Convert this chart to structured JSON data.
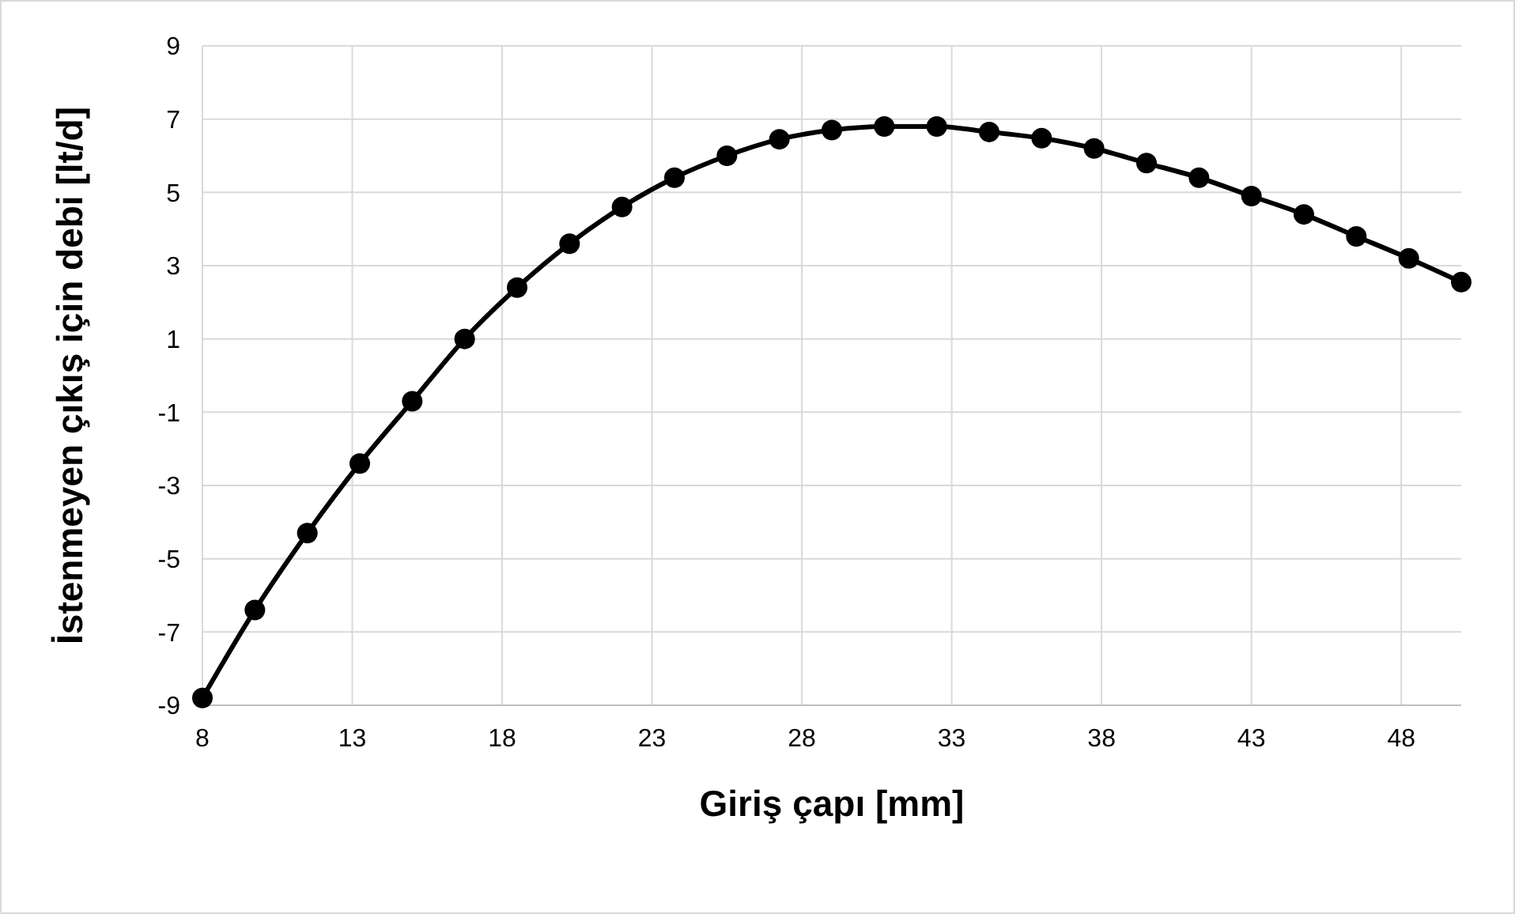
{
  "chart_data": {
    "type": "line",
    "xlabel": "Giriş çapı [mm]",
    "ylabel": "İstenmeyen çıkış için debi [lt/d]",
    "x": [
      8,
      9.75,
      11.5,
      13.25,
      15,
      16.75,
      18.5,
      20.25,
      22,
      23.75,
      25.5,
      27.25,
      29,
      30.75,
      32.5,
      34.25,
      36,
      37.75,
      39.5,
      41.25,
      43,
      44.75,
      46.5,
      48.25,
      50
    ],
    "series": [
      {
        "color": "#000000",
        "values": [
          -8.8,
          -6.4,
          -4.3,
          -2.4,
          -0.7,
          1.0,
          2.4,
          3.6,
          4.6,
          5.4,
          6.0,
          6.45,
          6.7,
          6.8,
          6.8,
          6.65,
          6.48,
          6.2,
          5.8,
          5.4,
          4.9,
          4.4,
          3.8,
          3.2,
          2.55
        ]
      }
    ],
    "xlim": [
      8,
      50
    ],
    "xticks": [
      8,
      13,
      18,
      23,
      28,
      33,
      38,
      43,
      48
    ],
    "ylim": [
      -9,
      9
    ],
    "yticks": [
      -9,
      -7,
      -5,
      -3,
      -1,
      1,
      3,
      5,
      7,
      9
    ],
    "grid": true,
    "marker": "circle",
    "line_style": "solid"
  }
}
